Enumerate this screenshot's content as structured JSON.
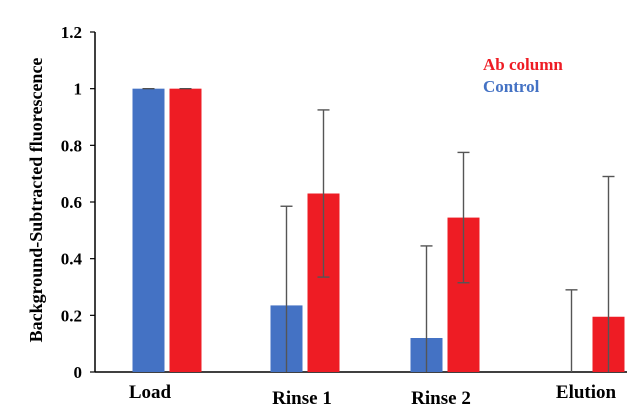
{
  "chart_data": {
    "type": "bar",
    "title": "",
    "xlabel": "",
    "ylabel": "Background-Subtracted  fluorescence",
    "ylim": [
      0,
      1.2
    ],
    "yticks": [
      "0",
      "0.2",
      "0.4",
      "0.6",
      "0.8",
      "1",
      "1.2"
    ],
    "ytick_values": [
      0,
      0.2,
      0.4,
      0.6,
      0.8,
      1.0,
      1.2
    ],
    "categories": [
      "Load",
      "Rinse 1",
      "Rinse 2",
      "Elution"
    ],
    "series": [
      {
        "name": "Control",
        "color": "#4472C4",
        "values": [
          1.0,
          0.235,
          0.12,
          0.0
        ],
        "error_upper": [
          1.0,
          0.585,
          0.445,
          0.29
        ],
        "error_lower": [
          1.0,
          0.0,
          0.0,
          0.0
        ]
      },
      {
        "name": "Ab column",
        "color": "#EE1C24",
        "values": [
          1.0,
          0.63,
          0.545,
          0.195
        ],
        "error_upper": [
          1.0,
          0.925,
          0.775,
          0.69
        ],
        "error_lower": [
          1.0,
          0.335,
          0.315,
          0.0
        ]
      }
    ],
    "legend": {
      "position": "top-right",
      "order": [
        "Ab column",
        "Control"
      ]
    },
    "grid": false
  }
}
